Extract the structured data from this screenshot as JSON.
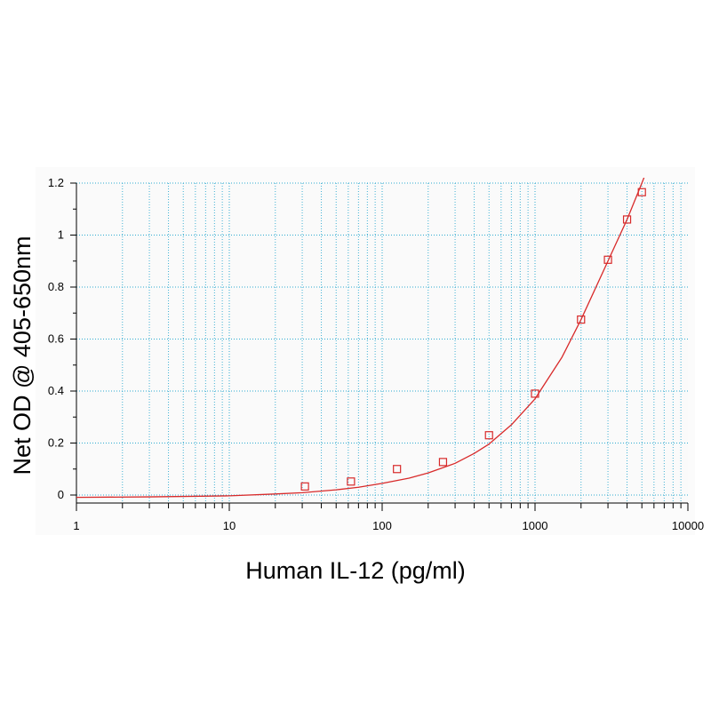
{
  "chart_data": {
    "type": "scatter",
    "xlabel": "Human IL-12 (pg/ml)",
    "ylabel": "Net OD @ 405-650nm",
    "x_scale": "log",
    "xlim": [
      1,
      10000
    ],
    "ylim": [
      -0.05,
      1.2
    ],
    "grid": true,
    "legend": "none",
    "x_tick_labels": [
      "1",
      "10",
      "100",
      "1000",
      "10000"
    ],
    "y_tick_labels": [
      "1.2",
      "1",
      "0.8",
      "0.6",
      "0.4",
      "0.2",
      "0"
    ],
    "x_tick_values": [
      1,
      10,
      100,
      1000,
      10000
    ],
    "y_tick_values": [
      1.2,
      1.0,
      0.8,
      0.6,
      0.4,
      0.2,
      0
    ],
    "series": [
      {
        "type": "scatter",
        "marker": "open-square",
        "color": "#d82a2a",
        "points": [
          {
            "x": 31.25,
            "y": 0.033
          },
          {
            "x": 62.5,
            "y": 0.052
          },
          {
            "x": 125,
            "y": 0.1
          },
          {
            "x": 250,
            "y": 0.127
          },
          {
            "x": 500,
            "y": 0.23
          },
          {
            "x": 1000,
            "y": 0.39
          },
          {
            "x": 2000,
            "y": 0.675
          },
          {
            "x": 3000,
            "y": 0.905
          },
          {
            "x": 4000,
            "y": 1.06
          },
          {
            "x": 5000,
            "y": 1.165
          }
        ]
      },
      {
        "type": "line",
        "style": "fitted-curve",
        "color": "#d82a2a",
        "points": [
          {
            "x": 1,
            "y": -0.009
          },
          {
            "x": 3,
            "y": -0.007
          },
          {
            "x": 10,
            "y": -0.003
          },
          {
            "x": 20,
            "y": 0.004
          },
          {
            "x": 30,
            "y": 0.009
          },
          {
            "x": 50,
            "y": 0.02
          },
          {
            "x": 70,
            "y": 0.03
          },
          {
            "x": 100,
            "y": 0.045
          },
          {
            "x": 150,
            "y": 0.065
          },
          {
            "x": 200,
            "y": 0.085
          },
          {
            "x": 300,
            "y": 0.122
          },
          {
            "x": 400,
            "y": 0.16
          },
          {
            "x": 500,
            "y": 0.196
          },
          {
            "x": 700,
            "y": 0.27
          },
          {
            "x": 1000,
            "y": 0.37
          },
          {
            "x": 1500,
            "y": 0.53
          },
          {
            "x": 2000,
            "y": 0.675
          },
          {
            "x": 3000,
            "y": 0.9
          },
          {
            "x": 4000,
            "y": 1.06
          },
          {
            "x": 5000,
            "y": 1.2
          },
          {
            "x": 5400,
            "y": 1.25
          }
        ]
      }
    ]
  },
  "colors": {
    "grid": "#2eaad0",
    "axis": "#000000",
    "plot_background": "#fafafa",
    "data": "#d82a2a"
  }
}
